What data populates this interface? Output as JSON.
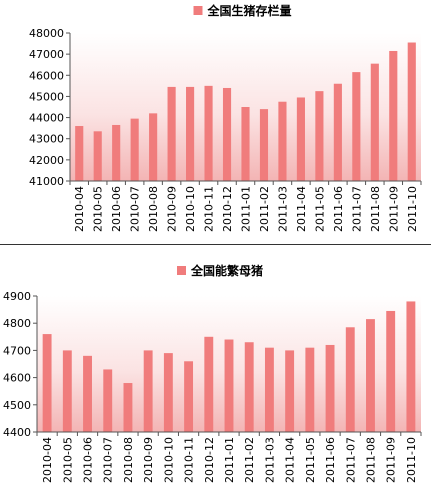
{
  "chart_data": [
    {
      "type": "bar",
      "legend": "全国生猪存栏量",
      "legend_position": "top-center",
      "color": "#f07c7c",
      "categories": [
        "2010-04",
        "2010-05",
        "2010-06",
        "2010-07",
        "2010-08",
        "2010-09",
        "2010-10",
        "2010-11",
        "2010-12",
        "2011-01",
        "2011-02",
        "2011-03",
        "2011-04",
        "2011-05",
        "2011-06",
        "2011-07",
        "2011-08",
        "2011-09",
        "2011-10"
      ],
      "values": [
        43600,
        43350,
        43650,
        43950,
        44200,
        45450,
        45450,
        45500,
        45400,
        44500,
        44400,
        44750,
        44950,
        45250,
        45600,
        46150,
        46550,
        47150,
        47550
      ],
      "ylim": [
        41000,
        48000
      ],
      "yticks": [
        41000,
        42000,
        43000,
        44000,
        45000,
        46000,
        47000,
        48000
      ],
      "grid": false
    },
    {
      "type": "bar",
      "legend": "全国能繁母猪",
      "legend_position": "top-center",
      "color": "#f07c7c",
      "categories": [
        "2010-04",
        "2010-05",
        "2010-06",
        "2010-07",
        "2010-08",
        "2010-09",
        "2010-10",
        "2010-11",
        "2010-12",
        "2011-01",
        "2011-02",
        "2011-03",
        "2011-04",
        "2011-05",
        "2011-06",
        "2011-07",
        "2011-08",
        "2011-09",
        "2011-10"
      ],
      "values": [
        4760,
        4700,
        4680,
        4630,
        4580,
        4700,
        4690,
        4660,
        4750,
        4740,
        4730,
        4710,
        4700,
        4710,
        4720,
        4785,
        4815,
        4845,
        4880
      ],
      "ylim": [
        4400,
        4900
      ],
      "yticks": [
        4400,
        4500,
        4600,
        4700,
        4800,
        4900
      ],
      "grid": false
    }
  ]
}
